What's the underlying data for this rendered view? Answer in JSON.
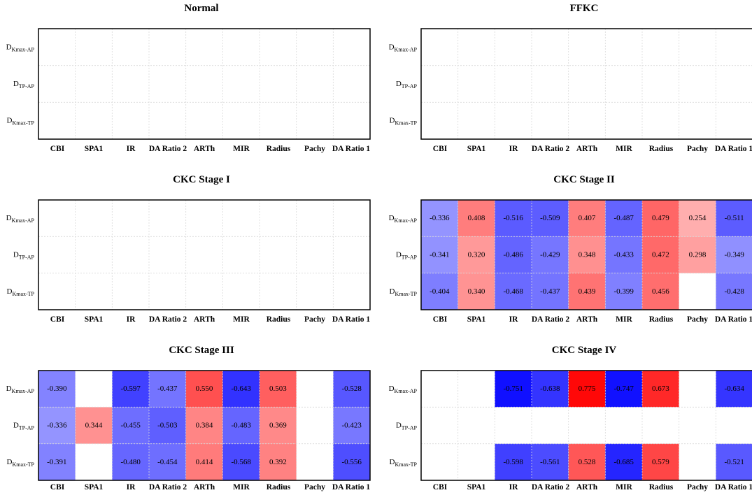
{
  "chart_data": [
    {
      "type": "heatmap",
      "title": "Normal",
      "x_labels": [
        "CBI",
        "SPA1",
        "IR",
        "DA Ratio 2",
        "ARTh",
        "MIR",
        "Radius",
        "Pachy",
        "DA Ratio 1"
      ],
      "y_labels": [
        {
          "main": "D",
          "sub": "Kmax-AP"
        },
        {
          "main": "D",
          "sub": "TP-AP"
        },
        {
          "main": "D",
          "sub": "Kmax-TP"
        }
      ],
      "values": [
        [
          null,
          null,
          null,
          null,
          null,
          null,
          null,
          null,
          null
        ],
        [
          null,
          null,
          null,
          null,
          null,
          null,
          null,
          null,
          null
        ],
        [
          null,
          null,
          null,
          null,
          null,
          null,
          null,
          null,
          null
        ]
      ],
      "value_range": [
        -0.8,
        0.8
      ],
      "colormap": "blue-white-red",
      "grid": true
    },
    {
      "type": "heatmap",
      "title": "FFKC",
      "x_labels": [
        "CBI",
        "SPA1",
        "IR",
        "DA Ratio 2",
        "ARTh",
        "MIR",
        "Radius",
        "Pachy",
        "DA Ratio 1"
      ],
      "y_labels": [
        {
          "main": "D",
          "sub": "Kmax-AP"
        },
        {
          "main": "D",
          "sub": "TP-AP"
        },
        {
          "main": "D",
          "sub": "Kmax-TP"
        }
      ],
      "values": [
        [
          null,
          null,
          null,
          null,
          null,
          null,
          null,
          null,
          null
        ],
        [
          null,
          null,
          null,
          null,
          null,
          null,
          null,
          null,
          null
        ],
        [
          null,
          null,
          null,
          null,
          null,
          null,
          null,
          null,
          null
        ]
      ],
      "value_range": [
        -0.8,
        0.8
      ],
      "colormap": "blue-white-red",
      "grid": true
    },
    {
      "type": "heatmap",
      "title": "CKC Stage I",
      "x_labels": [
        "CBI",
        "SPA1",
        "IR",
        "DA Ratio 2",
        "ARTh",
        "MIR",
        "Radius",
        "Pachy",
        "DA Ratio 1"
      ],
      "y_labels": [
        {
          "main": "D",
          "sub": "Kmax-AP"
        },
        {
          "main": "D",
          "sub": "TP-AP"
        },
        {
          "main": "D",
          "sub": "Kmax-TP"
        }
      ],
      "values": [
        [
          null,
          null,
          null,
          null,
          null,
          null,
          null,
          null,
          null
        ],
        [
          null,
          null,
          null,
          null,
          null,
          null,
          null,
          null,
          null
        ],
        [
          null,
          null,
          null,
          null,
          null,
          null,
          null,
          null,
          null
        ]
      ],
      "value_range": [
        -0.8,
        0.8
      ],
      "colormap": "blue-white-red",
      "grid": true
    },
    {
      "type": "heatmap",
      "title": "CKC Stage II",
      "x_labels": [
        "CBI",
        "SPA1",
        "IR",
        "DA Ratio 2",
        "ARTh",
        "MIR",
        "Radius",
        "Pachy",
        "DA Ratio 1"
      ],
      "y_labels": [
        {
          "main": "D",
          "sub": "Kmax-AP"
        },
        {
          "main": "D",
          "sub": "TP-AP"
        },
        {
          "main": "D",
          "sub": "Kmax-TP"
        }
      ],
      "values": [
        [
          -0.336,
          0.408,
          -0.516,
          -0.509,
          0.407,
          -0.487,
          0.479,
          0.254,
          -0.511
        ],
        [
          -0.341,
          0.32,
          -0.486,
          -0.429,
          0.348,
          -0.433,
          0.472,
          0.298,
          -0.349
        ],
        [
          -0.404,
          0.34,
          -0.468,
          -0.437,
          0.439,
          -0.399,
          0.456,
          null,
          -0.428
        ]
      ],
      "labels": [
        [
          "-0.336",
          "0.408",
          "-0.516",
          "-0.509",
          "0.407",
          "-0.487",
          "0.479",
          "0.254",
          "-0.511"
        ],
        [
          "-0.341",
          "0.320",
          "-0.486",
          "-0.429",
          "0.348",
          "-0.433",
          "0.472",
          "0.298",
          "-0.349"
        ],
        [
          "-0.404",
          "0.340",
          "-0.468",
          "-0.437",
          "0.439",
          "-0.399",
          "0.456",
          "",
          "-0.428"
        ]
      ],
      "value_range": [
        -0.8,
        0.8
      ],
      "colormap": "blue-white-red",
      "grid": true
    },
    {
      "type": "heatmap",
      "title": "CKC Stage III",
      "x_labels": [
        "CBI",
        "SPA1",
        "IR",
        "DA Ratio 2",
        "ARTh",
        "MIR",
        "Radius",
        "Pachy",
        "DA Ratio 1"
      ],
      "y_labels": [
        {
          "main": "D",
          "sub": "Kmax-AP"
        },
        {
          "main": "D",
          "sub": "TP-AP"
        },
        {
          "main": "D",
          "sub": "Kmax-TP"
        }
      ],
      "values": [
        [
          -0.39,
          null,
          -0.597,
          -0.437,
          0.55,
          -0.643,
          0.503,
          null,
          -0.528
        ],
        [
          -0.336,
          0.344,
          -0.455,
          -0.503,
          0.384,
          -0.483,
          0.369,
          null,
          -0.423
        ],
        [
          -0.391,
          null,
          -0.48,
          -0.454,
          0.414,
          -0.568,
          0.392,
          null,
          -0.556
        ]
      ],
      "labels": [
        [
          "-0.390",
          "",
          "-0.597",
          "-0.437",
          "0.550",
          "-0.643",
          "0.503",
          "",
          "-0.528"
        ],
        [
          "-0.336",
          "0.344",
          "-0.455",
          "-0.503",
          "0.384",
          "-0.483",
          "0.369",
          "",
          "-0.423"
        ],
        [
          "-0.391",
          "",
          "-0.480",
          "-0.454",
          "0.414",
          "-0.568",
          "0.392",
          "",
          "-0.556"
        ]
      ],
      "value_range": [
        -0.8,
        0.8
      ],
      "colormap": "blue-white-red",
      "grid": true
    },
    {
      "type": "heatmap",
      "title": "CKC Stage IV",
      "x_labels": [
        "CBI",
        "SPA1",
        "IR",
        "DA Ratio 2",
        "ARTh",
        "MIR",
        "Radius",
        "Pachy",
        "DA Ratio 1"
      ],
      "y_labels": [
        {
          "main": "D",
          "sub": "Kmax-AP"
        },
        {
          "main": "D",
          "sub": "TP-AP"
        },
        {
          "main": "D",
          "sub": "Kmax-TP"
        }
      ],
      "values": [
        [
          null,
          null,
          -0.751,
          -0.638,
          0.775,
          -0.747,
          0.673,
          null,
          -0.634
        ],
        [
          null,
          null,
          null,
          null,
          null,
          null,
          null,
          null,
          null
        ],
        [
          null,
          null,
          -0.598,
          -0.561,
          0.528,
          -0.685,
          0.579,
          null,
          -0.521
        ]
      ],
      "labels": [
        [
          "",
          "",
          "-0.751",
          "-0.638",
          "0.775",
          "-0.747",
          "0.673",
          "",
          "-0.634"
        ],
        [
          "",
          "",
          "",
          "",
          "",
          "",
          "",
          "",
          ""
        ],
        [
          "",
          "",
          "-0.598",
          "-0.561",
          "0.528",
          "-0.685",
          "0.579",
          "",
          "-0.521"
        ]
      ],
      "value_range": [
        -0.8,
        0.8
      ],
      "colormap": "blue-white-red",
      "grid": true
    }
  ]
}
